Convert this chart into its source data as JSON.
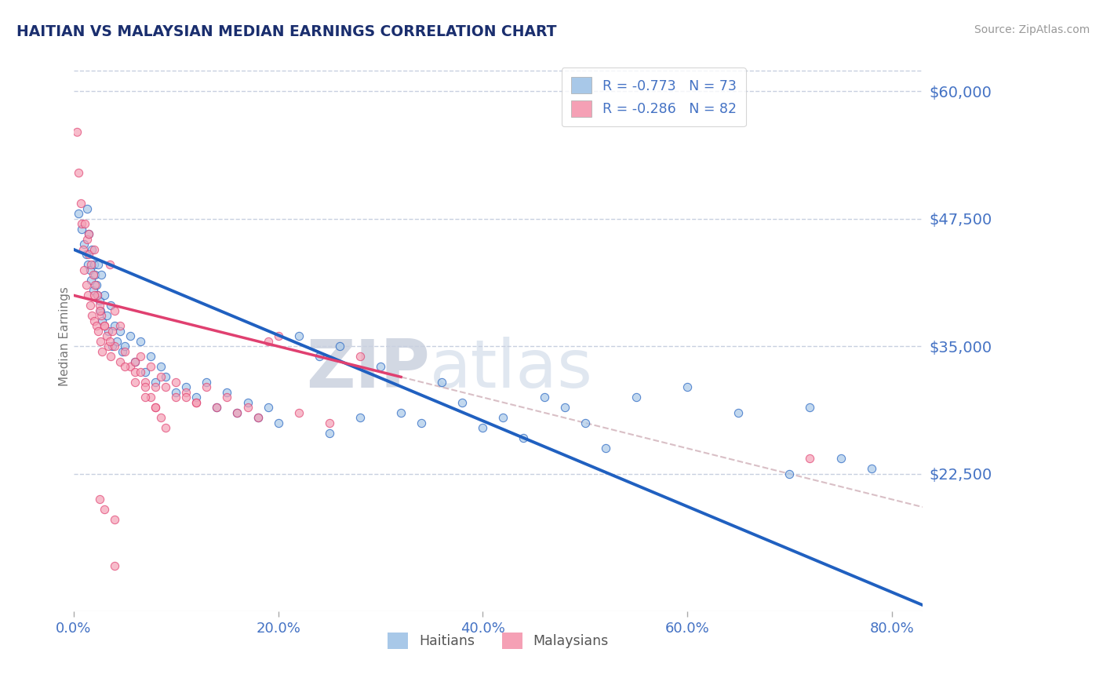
{
  "title": "HAITIAN VS MALAYSIAN MEDIAN EARNINGS CORRELATION CHART",
  "source": "Source: ZipAtlas.com",
  "ylabel": "Median Earnings",
  "legend_r": [
    "R = -0.773",
    "R = -0.286"
  ],
  "legend_n": [
    "N = 73",
    "N = 82"
  ],
  "blue_color": "#a8c8e8",
  "pink_color": "#f5a0b5",
  "line_blue": "#2060c0",
  "line_pink": "#e04070",
  "axis_label_color": "#4472c4",
  "title_color": "#1a2e6e",
  "ytick_labels": [
    "$60,000",
    "$47,500",
    "$35,000",
    "$22,500"
  ],
  "ytick_values": [
    60000,
    47500,
    35000,
    22500
  ],
  "xtick_labels": [
    "0.0%",
    "20.0%",
    "40.0%",
    "60.0%",
    "80.0%"
  ],
  "xtick_values": [
    0.0,
    0.2,
    0.4,
    0.6,
    0.8
  ],
  "xmin": 0.0,
  "xmax": 0.83,
  "ymin": 9000,
  "ymax": 63000,
  "watermark_zip": "ZIP",
  "watermark_atlas": "atlas",
  "background_color": "#ffffff",
  "grid_color": "#c8d0e0",
  "scatter_alpha": 0.7,
  "scatter_size": 55,
  "blue_intercept": 44500,
  "blue_slope": -42000,
  "pink_intercept": 40000,
  "pink_slope": -25000,
  "pink_line_xmax": 0.32,
  "blue_x": [
    0.005,
    0.008,
    0.01,
    0.012,
    0.013,
    0.014,
    0.015,
    0.016,
    0.017,
    0.018,
    0.019,
    0.02,
    0.021,
    0.022,
    0.023,
    0.024,
    0.025,
    0.026,
    0.027,
    0.028,
    0.03,
    0.032,
    0.034,
    0.036,
    0.038,
    0.04,
    0.042,
    0.045,
    0.048,
    0.05,
    0.055,
    0.06,
    0.065,
    0.07,
    0.075,
    0.08,
    0.085,
    0.09,
    0.1,
    0.11,
    0.12,
    0.13,
    0.14,
    0.15,
    0.16,
    0.17,
    0.18,
    0.19,
    0.2,
    0.22,
    0.24,
    0.25,
    0.26,
    0.28,
    0.3,
    0.32,
    0.34,
    0.36,
    0.38,
    0.4,
    0.42,
    0.44,
    0.46,
    0.48,
    0.5,
    0.52,
    0.55,
    0.6,
    0.65,
    0.7,
    0.72,
    0.75,
    0.78
  ],
  "blue_y": [
    48000,
    46500,
    45000,
    44000,
    48500,
    43000,
    46000,
    42500,
    41500,
    44500,
    40500,
    43000,
    42000,
    41000,
    40000,
    43000,
    39500,
    38500,
    42000,
    37500,
    40000,
    38000,
    36500,
    39000,
    35000,
    37000,
    35500,
    36500,
    34500,
    35000,
    36000,
    33500,
    35500,
    32500,
    34000,
    31500,
    33000,
    32000,
    30500,
    31000,
    30000,
    31500,
    29000,
    30500,
    28500,
    29500,
    28000,
    29000,
    27500,
    36000,
    34000,
    26500,
    35000,
    28000,
    33000,
    28500,
    27500,
    31500,
    29500,
    27000,
    28000,
    26000,
    30000,
    29000,
    27500,
    25000,
    30000,
    31000,
    28500,
    22500,
    29000,
    24000,
    23000
  ],
  "pink_x": [
    0.003,
    0.005,
    0.007,
    0.008,
    0.009,
    0.01,
    0.011,
    0.012,
    0.013,
    0.014,
    0.015,
    0.016,
    0.017,
    0.018,
    0.019,
    0.02,
    0.021,
    0.022,
    0.023,
    0.024,
    0.025,
    0.026,
    0.027,
    0.028,
    0.03,
    0.032,
    0.034,
    0.036,
    0.038,
    0.04,
    0.045,
    0.05,
    0.055,
    0.06,
    0.065,
    0.07,
    0.075,
    0.08,
    0.085,
    0.09,
    0.1,
    0.11,
    0.12,
    0.13,
    0.14,
    0.15,
    0.16,
    0.17,
    0.18,
    0.19,
    0.2,
    0.22,
    0.25,
    0.28,
    0.02,
    0.025,
    0.03,
    0.035,
    0.015,
    0.02,
    0.035,
    0.04,
    0.045,
    0.06,
    0.065,
    0.07,
    0.075,
    0.08,
    0.085,
    0.09,
    0.1,
    0.11,
    0.12,
    0.05,
    0.06,
    0.07,
    0.08,
    0.025,
    0.03,
    0.04,
    0.72,
    0.04
  ],
  "pink_y": [
    56000,
    52000,
    49000,
    47000,
    44500,
    42500,
    47000,
    41000,
    45500,
    40000,
    44000,
    39000,
    43000,
    38000,
    42000,
    37500,
    41000,
    37000,
    40000,
    36500,
    39000,
    35500,
    38000,
    34500,
    37000,
    36000,
    35000,
    34000,
    36500,
    35000,
    33500,
    34500,
    33000,
    32500,
    34000,
    31500,
    33000,
    31000,
    32000,
    31000,
    30000,
    30500,
    29500,
    31000,
    29000,
    30000,
    28500,
    29000,
    28000,
    35500,
    36000,
    28500,
    27500,
    34000,
    40000,
    38500,
    37000,
    35500,
    46000,
    44500,
    43000,
    38500,
    37000,
    33500,
    32500,
    31000,
    30000,
    29000,
    28000,
    27000,
    31500,
    30000,
    29500,
    33000,
    31500,
    30000,
    29000,
    20000,
    19000,
    18000,
    24000,
    13500
  ]
}
